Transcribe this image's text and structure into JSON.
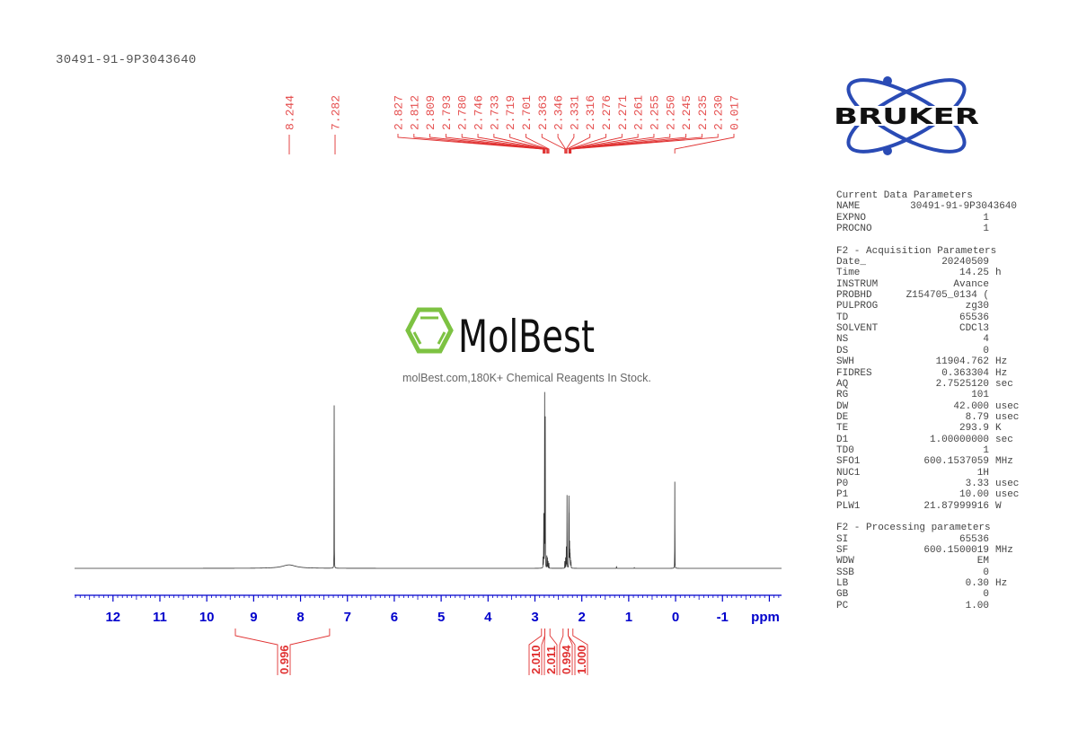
{
  "sample_title": "30491-91-9P3043640",
  "watermark": {
    "logo_text": "MolBest",
    "tagline": "molBest.com,180K+ Chemical Reagents In Stock.",
    "accent": "#7dc242"
  },
  "brand_logo": {
    "text": "BRUKER",
    "orbit_color": "#2a4bb5"
  },
  "parameters": {
    "sections": [
      {
        "title": "Current Data Parameters",
        "rows": [
          {
            "label": "NAME",
            "value": "30491-91-9P3043640",
            "unit": ""
          },
          {
            "label": "EXPNO",
            "value": "1",
            "unit": ""
          },
          {
            "label": "PROCNO",
            "value": "1",
            "unit": ""
          }
        ]
      },
      {
        "title": "F2 - Acquisition Parameters",
        "rows": [
          {
            "label": "Date_",
            "value": "20240509",
            "unit": ""
          },
          {
            "label": "Time",
            "value": "14.25",
            "unit": "h"
          },
          {
            "label": "INSTRUM",
            "value": "Avance",
            "unit": ""
          },
          {
            "label": "PROBHD",
            "value": "Z154705_0134 (",
            "unit": ""
          },
          {
            "label": "PULPROG",
            "value": "zg30",
            "unit": ""
          },
          {
            "label": "TD",
            "value": "65536",
            "unit": ""
          },
          {
            "label": "SOLVENT",
            "value": "CDCl3",
            "unit": ""
          },
          {
            "label": "NS",
            "value": "4",
            "unit": ""
          },
          {
            "label": "DS",
            "value": "0",
            "unit": ""
          },
          {
            "label": "SWH",
            "value": "11904.762",
            "unit": "Hz"
          },
          {
            "label": "FIDRES",
            "value": "0.363304",
            "unit": "Hz"
          },
          {
            "label": "AQ",
            "value": "2.7525120",
            "unit": "sec"
          },
          {
            "label": "RG",
            "value": "101",
            "unit": ""
          },
          {
            "label": "DW",
            "value": "42.000",
            "unit": "usec"
          },
          {
            "label": "DE",
            "value": "8.79",
            "unit": "usec"
          },
          {
            "label": "TE",
            "value": "293.9",
            "unit": "K"
          },
          {
            "label": "D1",
            "value": "1.00000000",
            "unit": "sec"
          },
          {
            "label": "TD0",
            "value": "1",
            "unit": ""
          },
          {
            "label": "SFO1",
            "value": "600.1537059",
            "unit": "MHz"
          },
          {
            "label": "NUC1",
            "value": "1H",
            "unit": ""
          },
          {
            "label": "P0",
            "value": "3.33",
            "unit": "usec"
          },
          {
            "label": "P1",
            "value": "10.00",
            "unit": "usec"
          },
          {
            "label": "PLW1",
            "value": "21.87999916",
            "unit": "W"
          }
        ]
      },
      {
        "title": "F2 - Processing parameters",
        "rows": [
          {
            "label": "SI",
            "value": "65536",
            "unit": ""
          },
          {
            "label": "SF",
            "value": "600.1500019",
            "unit": "MHz"
          },
          {
            "label": "WDW",
            "value": "EM",
            "unit": ""
          },
          {
            "label": "SSB",
            "value": "0",
            "unit": ""
          },
          {
            "label": "LB",
            "value": "0.30",
            "unit": "Hz"
          },
          {
            "label": "GB",
            "value": "0",
            "unit": ""
          },
          {
            "label": "PC",
            "value": "1.00",
            "unit": ""
          }
        ]
      }
    ]
  },
  "chart_data": {
    "type": "line",
    "xlabel": "ppm",
    "xlim": [
      12.82,
      -2.26
    ],
    "x_reversed": true,
    "x_ticks": [
      "12",
      "11",
      "10",
      "9",
      "8",
      "7",
      "6",
      "5",
      "4",
      "3",
      "2",
      "1",
      "0",
      "-1"
    ],
    "grid": false,
    "trace_color": "#333333",
    "axis_color": "#0000cc",
    "annotation_color": "#e03030",
    "peaks": [
      {
        "ppm": 8.244,
        "intensity": 0.02,
        "width": 0.35
      },
      {
        "ppm": 7.282,
        "intensity": 0.94
      },
      {
        "ppm": 2.827,
        "intensity": 0.06
      },
      {
        "ppm": 2.812,
        "intensity": 0.25
      },
      {
        "ppm": 2.809,
        "intensity": 0.25
      },
      {
        "ppm": 2.793,
        "intensity": 1.0
      },
      {
        "ppm": 2.78,
        "intensity": 0.86
      },
      {
        "ppm": 2.746,
        "intensity": 0.07
      },
      {
        "ppm": 2.733,
        "intensity": 0.06
      },
      {
        "ppm": 2.719,
        "intensity": 0.04
      },
      {
        "ppm": 2.701,
        "intensity": 0.03
      },
      {
        "ppm": 2.363,
        "intensity": 0.04
      },
      {
        "ppm": 2.346,
        "intensity": 0.06
      },
      {
        "ppm": 2.331,
        "intensity": 0.12
      },
      {
        "ppm": 2.316,
        "intensity": 0.42
      },
      {
        "ppm": 2.276,
        "intensity": 0.39
      },
      {
        "ppm": 2.271,
        "intensity": 0.28
      },
      {
        "ppm": 2.261,
        "intensity": 0.14
      },
      {
        "ppm": 2.255,
        "intensity": 0.09
      },
      {
        "ppm": 2.25,
        "intensity": 0.07
      },
      {
        "ppm": 2.245,
        "intensity": 0.05
      },
      {
        "ppm": 2.235,
        "intensity": 0.04
      },
      {
        "ppm": 2.23,
        "intensity": 0.03
      },
      {
        "ppm": 1.26,
        "intensity": 0.012
      },
      {
        "ppm": 0.88,
        "intensity": 0.006
      },
      {
        "ppm": 0.017,
        "intensity": 0.5
      }
    ],
    "peak_labels": [
      "8.244",
      "7.282",
      "2.827",
      "2.812",
      "2.809",
      "2.793",
      "2.780",
      "2.746",
      "2.733",
      "2.719",
      "2.701",
      "2.363",
      "2.346",
      "2.331",
      "2.316",
      "2.276",
      "2.271",
      "2.261",
      "2.255",
      "2.250",
      "2.245",
      "2.235",
      "2.230",
      "0.017"
    ],
    "integrals": [
      {
        "from": 9.39,
        "to": 7.38,
        "value": "0.996"
      },
      {
        "from": 2.86,
        "to": 2.79,
        "value": "2.010"
      },
      {
        "from": 2.79,
        "to": 2.68,
        "value": "2.011"
      },
      {
        "from": 2.4,
        "to": 2.29,
        "value": "0.994"
      },
      {
        "from": 2.29,
        "to": 2.19,
        "value": "1.000"
      }
    ]
  }
}
